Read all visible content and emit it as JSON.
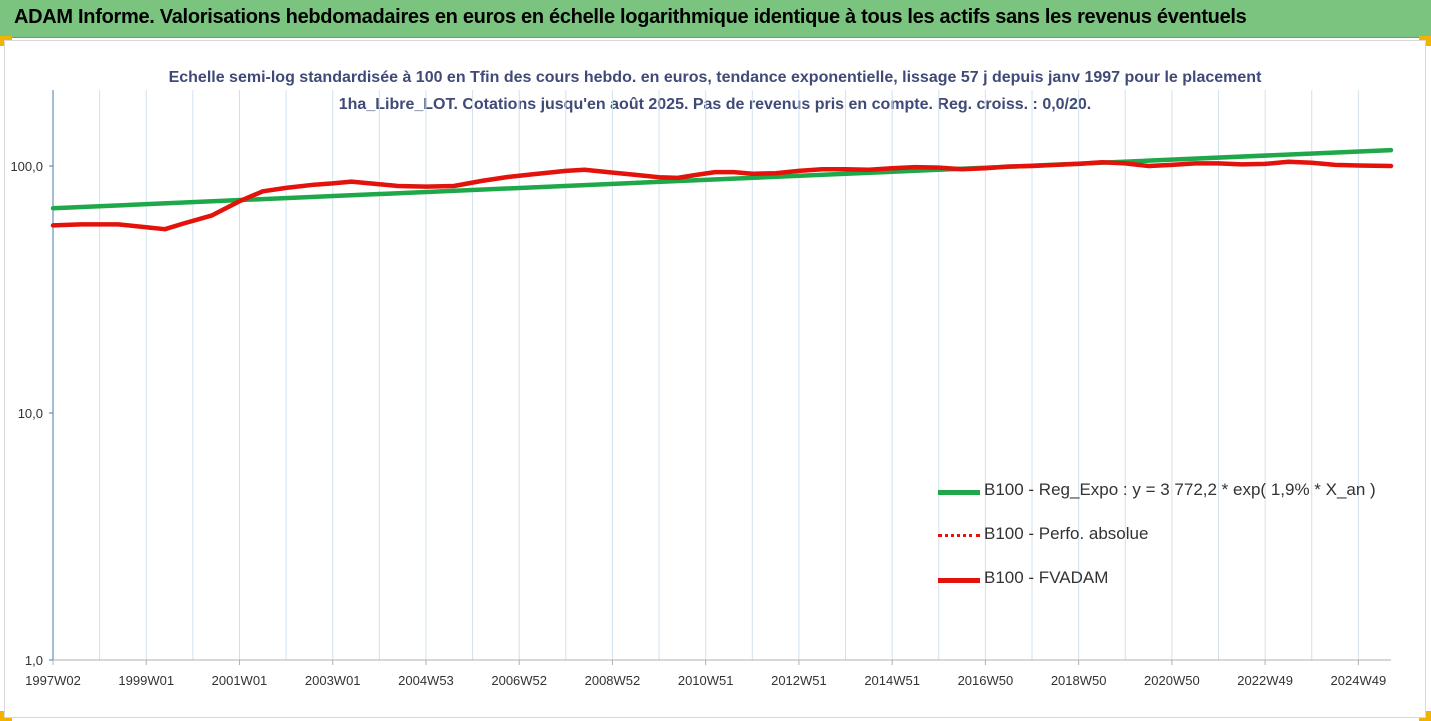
{
  "header": {
    "title": "ADAM Informe. Valorisations hebdomadaires en euros en échelle logarithmique identique à tous les actifs sans les revenus éventuels",
    "accent_color": "#7ac47f",
    "corner_color": "#f2b300"
  },
  "chart_data": {
    "type": "line",
    "title": "Echelle semi-log standardisée à 100 en Tfin des cours hebdo. en euros, tendance exponentielle, lissage 57 j depuis janv 1997 pour le placement 1ha_Libre_LOT. Cotations jusqu'en août 2025. Pas de revenus pris en compte. Reg. croiss. : 0,0/20.",
    "xlabel": "",
    "ylabel": "",
    "y_scale": "log",
    "ylim": [
      1,
      200
    ],
    "y_ticks": [
      {
        "value": 1,
        "label": "1,0"
      },
      {
        "value": 10,
        "label": "10,0"
      },
      {
        "value": 100,
        "label": "100,0"
      }
    ],
    "x_range": [
      1997.0,
      2025.7
    ],
    "x_ticks": [
      {
        "x": 1997.0,
        "label": "1997W02"
      },
      {
        "x": 1999.0,
        "label": "1999W01"
      },
      {
        "x": 2001.0,
        "label": "2001W01"
      },
      {
        "x": 2003.0,
        "label": "2003W01"
      },
      {
        "x": 2005.0,
        "label": "2004W53"
      },
      {
        "x": 2007.0,
        "label": "2006W52"
      },
      {
        "x": 2009.0,
        "label": "2008W52"
      },
      {
        "x": 2011.0,
        "label": "2010W51"
      },
      {
        "x": 2013.0,
        "label": "2012W51"
      },
      {
        "x": 2015.0,
        "label": "2014W51"
      },
      {
        "x": 2017.0,
        "label": "2016W50"
      },
      {
        "x": 2019.0,
        "label": "2018W50"
      },
      {
        "x": 2021.0,
        "label": "2020W50"
      },
      {
        "x": 2023.0,
        "label": "2022W49"
      },
      {
        "x": 2025.0,
        "label": "2024W49"
      }
    ],
    "grid": "vertical",
    "legend_position": "right",
    "series": [
      {
        "name": "B100 - Reg_Expo : y = 3 772,2 * exp( 1,9% *  X_an )",
        "color": "#1fa84a",
        "style": "solid",
        "points": [
          [
            1997.0,
            67.5
          ],
          [
            2025.7,
            116.0
          ]
        ]
      },
      {
        "name": "B100 - Perfo. absolue",
        "color": "#e3120b",
        "style": "dotted",
        "points": []
      },
      {
        "name": "B100 - FVADAM",
        "color": "#e3120b",
        "style": "solid",
        "points": [
          [
            1997.0,
            57.5
          ],
          [
            1997.6,
            58.0
          ],
          [
            1998.4,
            58.0
          ],
          [
            1999.0,
            56.5
          ],
          [
            1999.4,
            55.5
          ],
          [
            1999.8,
            58.5
          ],
          [
            2000.4,
            63.0
          ],
          [
            2001.0,
            72.0
          ],
          [
            2001.5,
            79.0
          ],
          [
            2002.0,
            81.5
          ],
          [
            2002.6,
            84.0
          ],
          [
            2003.0,
            85.0
          ],
          [
            2003.4,
            86.5
          ],
          [
            2003.8,
            85.0
          ],
          [
            2004.4,
            83.0
          ],
          [
            2005.0,
            82.5
          ],
          [
            2005.6,
            83.0
          ],
          [
            2006.2,
            87.0
          ],
          [
            2006.8,
            90.5
          ],
          [
            2007.4,
            93.0
          ],
          [
            2008.0,
            95.5
          ],
          [
            2008.4,
            96.5
          ],
          [
            2008.9,
            94.5
          ],
          [
            2009.5,
            92.0
          ],
          [
            2010.0,
            90.0
          ],
          [
            2010.4,
            89.5
          ],
          [
            2010.8,
            92.0
          ],
          [
            2011.2,
            94.5
          ],
          [
            2011.6,
            94.5
          ],
          [
            2012.0,
            93.0
          ],
          [
            2012.5,
            93.5
          ],
          [
            2013.0,
            95.5
          ],
          [
            2013.5,
            97.0
          ],
          [
            2014.0,
            97.0
          ],
          [
            2014.5,
            96.5
          ],
          [
            2015.0,
            98.0
          ],
          [
            2015.5,
            99.0
          ],
          [
            2016.0,
            98.5
          ],
          [
            2016.5,
            97.0
          ],
          [
            2017.0,
            98.0
          ],
          [
            2017.5,
            99.5
          ],
          [
            2018.0,
            100.0
          ],
          [
            2018.5,
            101.0
          ],
          [
            2019.0,
            102.0
          ],
          [
            2019.5,
            103.5
          ],
          [
            2020.0,
            102.5
          ],
          [
            2020.5,
            100.0
          ],
          [
            2021.0,
            101.0
          ],
          [
            2021.5,
            102.5
          ],
          [
            2022.0,
            102.5
          ],
          [
            2022.5,
            101.5
          ],
          [
            2023.0,
            102.0
          ],
          [
            2023.5,
            104.0
          ],
          [
            2024.0,
            103.0
          ],
          [
            2024.5,
            101.0
          ],
          [
            2025.0,
            100.5
          ],
          [
            2025.7,
            100.0
          ]
        ]
      }
    ]
  }
}
